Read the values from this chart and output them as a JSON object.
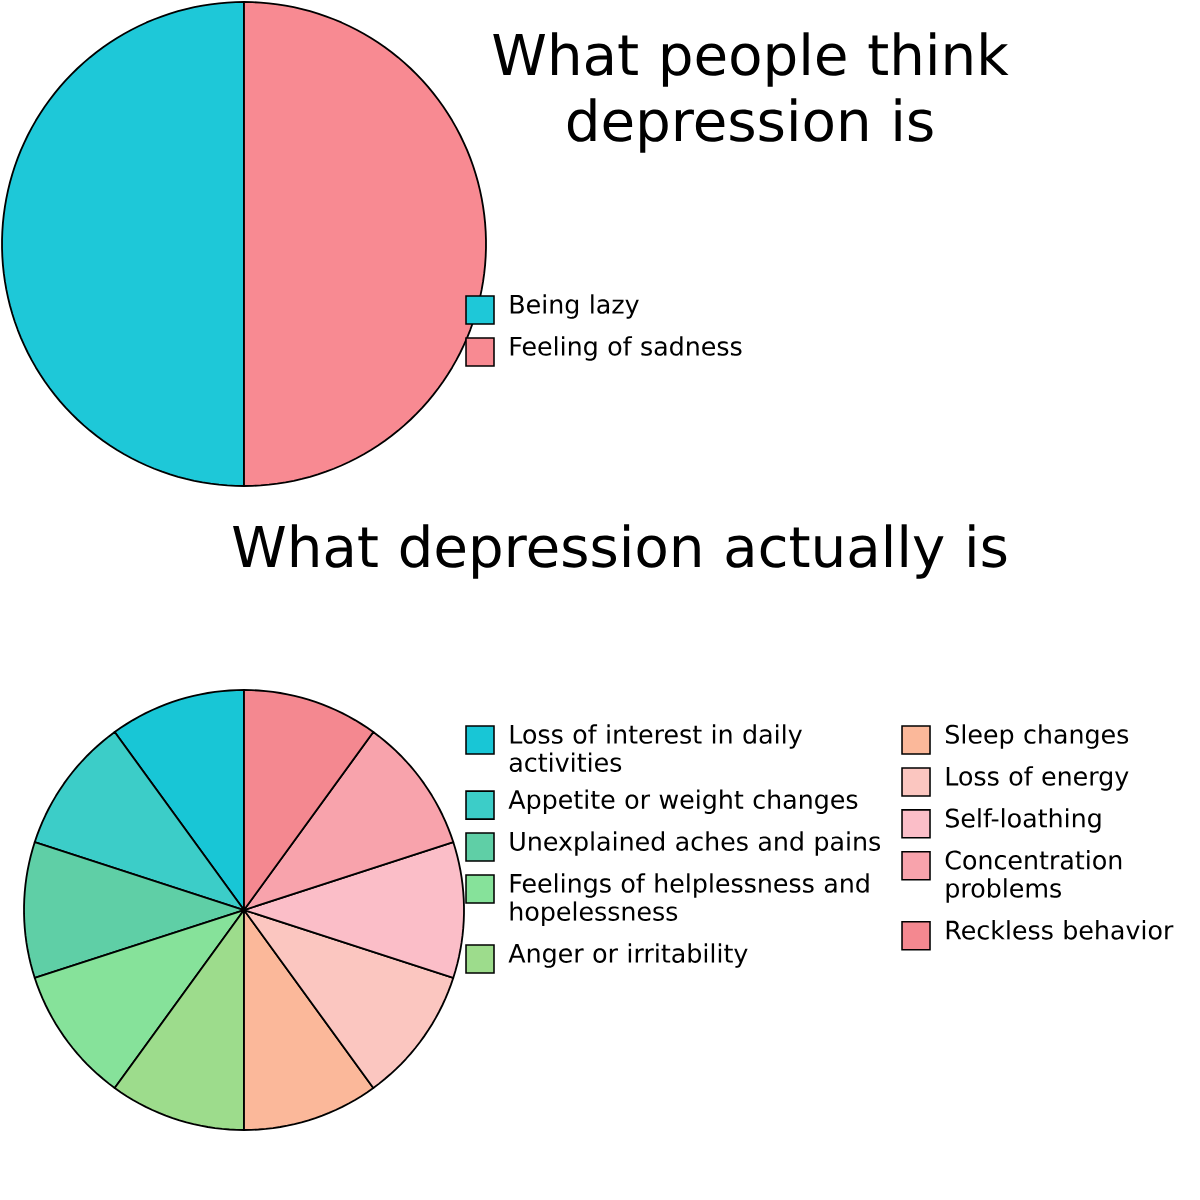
{
  "chart_data": [
    {
      "type": "pie",
      "title": "What people think depression is",
      "categories": [
        "Being lazy",
        "Feeling of sadness"
      ],
      "values": [
        50,
        50
      ],
      "colors": [
        "#1ec8d8",
        "#f88a92"
      ],
      "legend": "right"
    },
    {
      "type": "pie",
      "title": "What depression actually is",
      "categories": [
        "Loss of interest in daily activities",
        "Appetite or weight changes",
        "Unexplained aches and pains",
        "Feelings of helplessness and hopelessness",
        "Anger or irritability",
        "Sleep changes",
        "Loss of energy",
        "Self-loathing",
        "Concentration problems",
        "Reckless behavior"
      ],
      "values": [
        10,
        10,
        10,
        10,
        10,
        10,
        10,
        10,
        10,
        10
      ],
      "colors": [
        "#18c6d6",
        "#3ccdc8",
        "#5fcfa6",
        "#86e29a",
        "#9ddc8c",
        "#fbb89a",
        "#fbc6c0",
        "#fbbec8",
        "#f8a3ac",
        "#f48890"
      ],
      "legend": "right"
    }
  ]
}
